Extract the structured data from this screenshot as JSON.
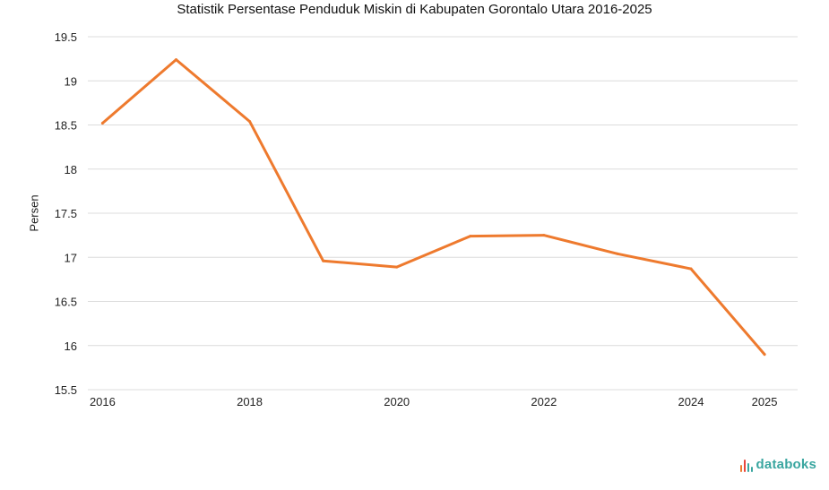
{
  "chart_data": {
    "type": "line",
    "title": "Statistik Persentase Penduduk Miskin di Kabupaten Gorontalo Utara 2016-2025",
    "ylabel": "Persen",
    "xlabel": "",
    "x": [
      2016,
      2017,
      2018,
      2019,
      2020,
      2021,
      2022,
      2023,
      2024,
      2025
    ],
    "xticks": [
      "2016",
      "2018",
      "2020",
      "2022",
      "2024",
      "2025"
    ],
    "series": [
      {
        "values": [
          18.52,
          19.24,
          18.54,
          16.96,
          16.89,
          17.24,
          17.25,
          17.04,
          16.87,
          15.9
        ],
        "color": "#ee7a2e"
      }
    ],
    "ylim": [
      15.5,
      19.5
    ],
    "yticks": [
      "15.5",
      "16",
      "16.5",
      "17",
      "17.5",
      "18",
      "18.5",
      "19",
      "19.5"
    ],
    "grid": true
  },
  "brand": {
    "name": "databoks",
    "icon": "databoks-logo-icon",
    "color": "#3aa6a0"
  }
}
